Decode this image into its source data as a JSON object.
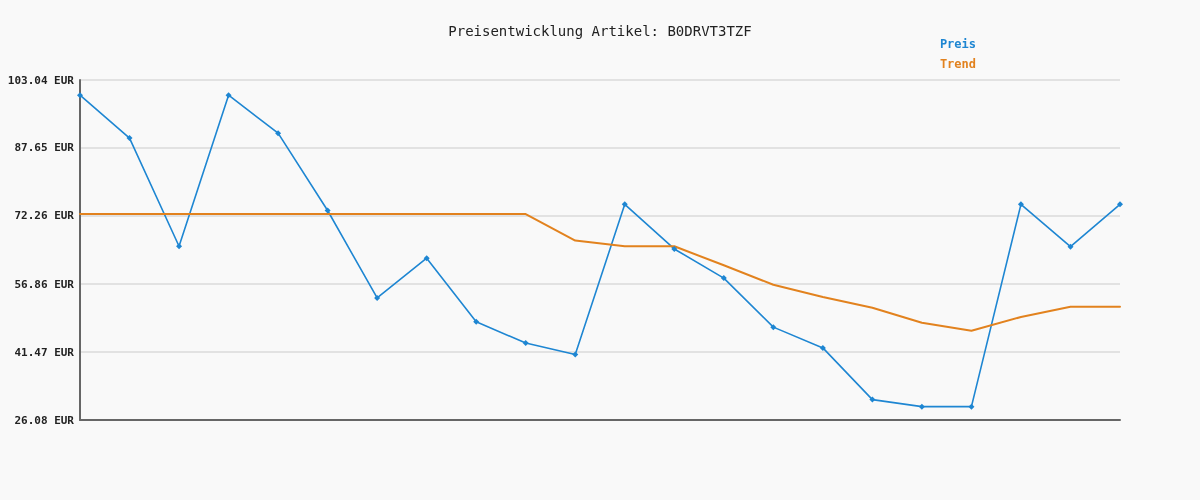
{
  "chart_data": {
    "type": "line",
    "title": "Preisentwicklung Artikel: B0DRVT3TZF",
    "categories": [
      null,
      null,
      null,
      null,
      null,
      null,
      null,
      null,
      null,
      null,
      null,
      null,
      null,
      null,
      null,
      null,
      null,
      null,
      null,
      null,
      null,
      null
    ],
    "series": [
      {
        "name": "Preis",
        "color": "#1e86d2",
        "marker": "diamond",
        "values": [
          99.6,
          89.9,
          65.4,
          99.6,
          91.0,
          73.5,
          53.7,
          62.7,
          48.3,
          43.5,
          40.9,
          74.9,
          64.8,
          58.2,
          47.1,
          42.4,
          30.7,
          29.1,
          29.1,
          74.9,
          65.3,
          74.9
        ]
      },
      {
        "name": "Trend",
        "color": "#e2821e",
        "marker": "none",
        "values": [
          72.7,
          72.7,
          72.7,
          72.7,
          72.7,
          72.7,
          72.7,
          72.7,
          72.7,
          72.7,
          66.7,
          65.4,
          65.4,
          61.1,
          56.7,
          53.9,
          51.5,
          48.1,
          46.3,
          49.4,
          51.7,
          51.7
        ]
      }
    ],
    "ylim": [
      26.08,
      103.04
    ],
    "yticks": [
      {
        "value": 26.08,
        "label": "26.08 EUR"
      },
      {
        "value": 41.47,
        "label": "41.47 EUR"
      },
      {
        "value": 56.86,
        "label": "56.86 EUR"
      },
      {
        "value": 72.26,
        "label": "72.26 EUR"
      },
      {
        "value": 87.65,
        "label": "87.65 EUR"
      },
      {
        "value": 103.04,
        "label": "103.04 EUR"
      }
    ],
    "grid": "y",
    "legend": "top right",
    "tick_labels": "y"
  }
}
